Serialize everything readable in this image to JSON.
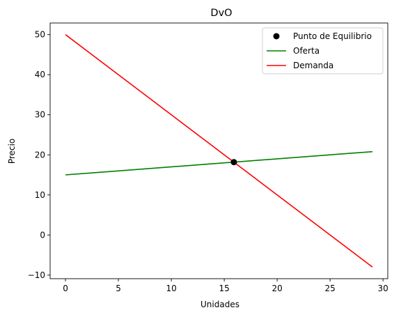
{
  "chart_data": {
    "type": "line",
    "title": "DvO",
    "xlabel": "Unidades",
    "ylabel": "Precio",
    "xlim": [
      -1.45,
      30.45
    ],
    "ylim": [
      -10.9,
      52.9
    ],
    "xticks": [
      0,
      5,
      10,
      15,
      20,
      25,
      30
    ],
    "yticks": [
      -10,
      0,
      10,
      20,
      30,
      40,
      50
    ],
    "grid": false,
    "legend_position": "top-right",
    "series": [
      {
        "name": "Oferta",
        "type": "line",
        "color": "#008000",
        "x": [
          0,
          29
        ],
        "y": [
          15,
          20.8
        ]
      },
      {
        "name": "Demanda",
        "type": "line",
        "color": "#ff0000",
        "x": [
          0,
          29
        ],
        "y": [
          50,
          -8
        ]
      }
    ],
    "points": [
      {
        "name": "Punto de Equilibrio",
        "type": "scatter",
        "color": "#000000",
        "x": 15.91,
        "y": 18.18
      }
    ],
    "legend": [
      {
        "label": "Punto de Equilibrio",
        "marker": "dot",
        "color": "#000000"
      },
      {
        "label": "Oferta",
        "marker": "line",
        "color": "#008000"
      },
      {
        "label": "Demanda",
        "marker": "line",
        "color": "#ff0000"
      }
    ]
  }
}
